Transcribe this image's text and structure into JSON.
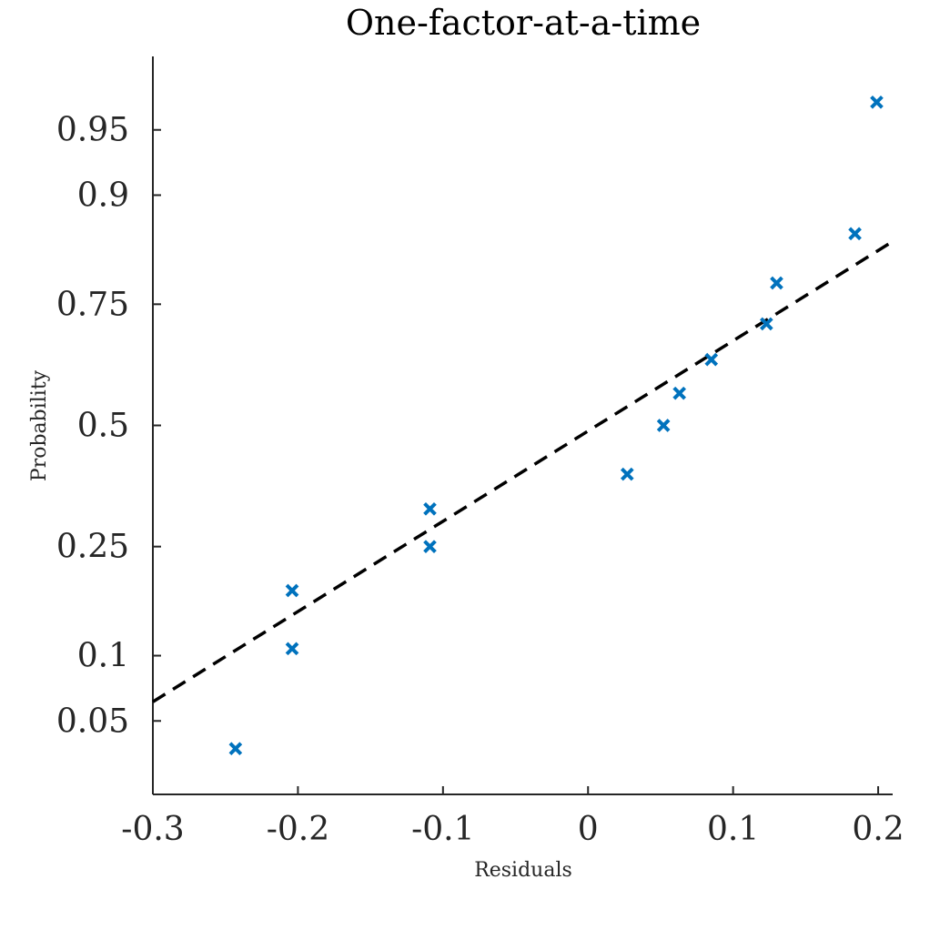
{
  "chart_data": {
    "type": "scatter",
    "title": "One-factor-at-a-time",
    "xlabel": "Residuals",
    "ylabel": "Probability",
    "xlim": [
      -0.3,
      0.21
    ],
    "x_ticks": [
      -0.3,
      -0.2,
      -0.1,
      0,
      0.1,
      0.2
    ],
    "x_tick_labels": [
      "-0.3",
      "-0.2",
      "-0.1",
      "0",
      "0.1",
      "0.2"
    ],
    "y_scale": "normal-probability",
    "ylim": [
      0.02,
      0.98
    ],
    "y_ticks": [
      0.05,
      0.1,
      0.25,
      0.5,
      0.75,
      0.9,
      0.95
    ],
    "y_tick_labels": [
      "0.05",
      "0.1",
      "0.25",
      "0.5",
      "0.75",
      "0.9",
      "0.95"
    ],
    "grid": false,
    "marker": "x",
    "marker_color": "#0072BD",
    "fit_line_color": "#000000",
    "fit_line_style": "dashed",
    "fit_line": {
      "x": [
        -0.3,
        0.21
      ],
      "y": [
        0.062,
        0.847
      ]
    },
    "points": [
      {
        "x": -0.243,
        "y": 0.036
      },
      {
        "x": -0.204,
        "y": 0.107
      },
      {
        "x": -0.204,
        "y": 0.179
      },
      {
        "x": -0.109,
        "y": 0.25
      },
      {
        "x": -0.109,
        "y": 0.321
      },
      {
        "x": 0.027,
        "y": 0.393
      },
      {
        "x": 0.052,
        "y": 0.5
      },
      {
        "x": 0.063,
        "y": 0.571
      },
      {
        "x": 0.085,
        "y": 0.643
      },
      {
        "x": 0.123,
        "y": 0.714
      },
      {
        "x": 0.13,
        "y": 0.786
      },
      {
        "x": 0.184,
        "y": 0.857
      },
      {
        "x": 0.199,
        "y": 0.964
      }
    ]
  }
}
